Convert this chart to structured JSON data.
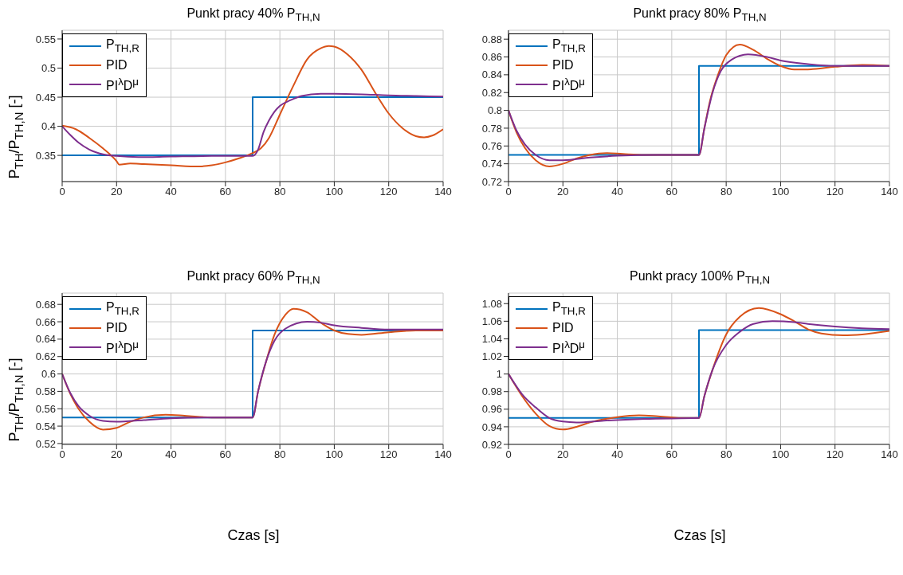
{
  "chart_data": [
    {
      "type": "line",
      "title": "Punkt pracy 40% P$_{TH,N}$",
      "ylabel": "P$_{TH}$/P$_{TH,N}$ [-]",
      "xlim": [
        0,
        140
      ],
      "xticks": [
        0,
        20,
        40,
        60,
        80,
        100,
        120,
        140
      ],
      "ylim": [
        0.305,
        0.565
      ],
      "yticks": [
        0.35,
        0.4,
        0.45,
        0.5,
        0.55
      ],
      "grid": true,
      "legend": "top left",
      "marker": "none",
      "line_style": "solid",
      "series": [
        {
          "name": "P$_{TH,R}$",
          "color": "#0072bd",
          "x": [
            0,
            70,
            70,
            140
          ],
          "values": [
            0.35,
            0.35,
            0.45,
            0.45
          ]
        },
        {
          "name": "PID",
          "color": "#d95319",
          "x": [
            0,
            5,
            10,
            15,
            20,
            21,
            25,
            30,
            40,
            50,
            55,
            60,
            65,
            70,
            73,
            76,
            80,
            85,
            90,
            95,
            98,
            100,
            105,
            110,
            115,
            120,
            125,
            130,
            133,
            136,
            140
          ],
          "values": [
            0.401,
            0.395,
            0.38,
            0.362,
            0.34,
            0.334,
            0.336,
            0.335,
            0.333,
            0.331,
            0.333,
            0.338,
            0.345,
            0.354,
            0.362,
            0.38,
            0.42,
            0.47,
            0.515,
            0.534,
            0.538,
            0.537,
            0.523,
            0.497,
            0.458,
            0.422,
            0.397,
            0.383,
            0.381,
            0.384,
            0.395
          ]
        },
        {
          "name": "PI$^{λ}$D$^{μ}$",
          "color": "#7e2f8e",
          "x": [
            0,
            3,
            6,
            10,
            15,
            20,
            28,
            40,
            55,
            70,
            72,
            74,
            76,
            78,
            80,
            84,
            88,
            95,
            100,
            110,
            120,
            130,
            140
          ],
          "values": [
            0.4,
            0.385,
            0.372,
            0.36,
            0.352,
            0.349,
            0.347,
            0.348,
            0.349,
            0.349,
            0.36,
            0.39,
            0.41,
            0.425,
            0.435,
            0.445,
            0.452,
            0.456,
            0.456,
            0.455,
            0.453,
            0.452,
            0.451
          ]
        }
      ]
    },
    {
      "type": "line",
      "title": "Punkt pracy 80% P$_{TH,N}$",
      "xlim": [
        0,
        140
      ],
      "xticks": [
        0,
        20,
        40,
        60,
        80,
        100,
        120,
        140
      ],
      "ylim": [
        0.72,
        0.89
      ],
      "yticks": [
        0.72,
        0.74,
        0.76,
        0.78,
        0.8,
        0.82,
        0.84,
        0.86,
        0.88
      ],
      "grid": true,
      "legend": "top left",
      "marker": "none",
      "line_style": "solid",
      "series": [
        {
          "name": "P$_{TH,R}$",
          "color": "#0072bd",
          "x": [
            0,
            70,
            70,
            140
          ],
          "values": [
            0.75,
            0.75,
            0.85,
            0.85
          ]
        },
        {
          "name": "PID",
          "color": "#d95319",
          "x": [
            0,
            3,
            6,
            10,
            15,
            20,
            25,
            30,
            36,
            42,
            50,
            60,
            70,
            72,
            74,
            77,
            80,
            85,
            90,
            95,
            100,
            105,
            110,
            120,
            130,
            140
          ],
          "values": [
            0.8,
            0.775,
            0.758,
            0.744,
            0.737,
            0.74,
            0.746,
            0.75,
            0.752,
            0.751,
            0.75,
            0.75,
            0.75,
            0.78,
            0.81,
            0.84,
            0.862,
            0.874,
            0.868,
            0.858,
            0.85,
            0.846,
            0.846,
            0.849,
            0.851,
            0.85
          ]
        },
        {
          "name": "PI$^{λ}$D$^{μ}$",
          "color": "#7e2f8e",
          "x": [
            0,
            3,
            6,
            10,
            15,
            20,
            30,
            40,
            55,
            70,
            72,
            75,
            78,
            82,
            88,
            95,
            100,
            110,
            120,
            140
          ],
          "values": [
            0.8,
            0.777,
            0.762,
            0.75,
            0.744,
            0.744,
            0.747,
            0.749,
            0.75,
            0.75,
            0.78,
            0.82,
            0.844,
            0.857,
            0.863,
            0.86,
            0.856,
            0.852,
            0.85,
            0.85
          ]
        }
      ]
    },
    {
      "type": "line",
      "title": "Punkt pracy 60% P$_{TH,N}$",
      "xlabel": "Czas [s]",
      "ylabel": "P$_{TH}$/P$_{TH,N}$ [-]",
      "xlim": [
        0,
        140
      ],
      "xticks": [
        0,
        20,
        40,
        60,
        80,
        100,
        120,
        140
      ],
      "ylim": [
        0.519,
        0.693
      ],
      "yticks": [
        0.52,
        0.54,
        0.56,
        0.58,
        0.6,
        0.62,
        0.64,
        0.66,
        0.68
      ],
      "grid": true,
      "legend": "top left",
      "marker": "none",
      "line_style": "solid",
      "series": [
        {
          "name": "P$_{TH,R}$",
          "color": "#0072bd",
          "x": [
            0,
            70,
            70,
            140
          ],
          "values": [
            0.55,
            0.55,
            0.65,
            0.65
          ]
        },
        {
          "name": "PID",
          "color": "#d95319",
          "x": [
            0,
            3,
            6,
            10,
            15,
            20,
            25,
            30,
            38,
            45,
            55,
            70,
            72,
            75,
            78,
            82,
            85,
            90,
            95,
            100,
            105,
            110,
            120,
            130,
            140
          ],
          "values": [
            0.6,
            0.577,
            0.56,
            0.545,
            0.536,
            0.538,
            0.545,
            0.55,
            0.553,
            0.552,
            0.55,
            0.55,
            0.58,
            0.615,
            0.645,
            0.668,
            0.675,
            0.671,
            0.659,
            0.65,
            0.646,
            0.645,
            0.648,
            0.65,
            0.65
          ]
        },
        {
          "name": "PI$^{λ}$D$^{μ}$",
          "color": "#7e2f8e",
          "x": [
            0,
            3,
            6,
            10,
            15,
            20,
            30,
            40,
            55,
            70,
            72,
            75,
            78,
            82,
            90,
            95,
            100,
            110,
            120,
            140
          ],
          "values": [
            0.6,
            0.578,
            0.563,
            0.552,
            0.546,
            0.545,
            0.547,
            0.549,
            0.55,
            0.55,
            0.58,
            0.615,
            0.638,
            0.652,
            0.66,
            0.659,
            0.656,
            0.653,
            0.651,
            0.651
          ]
        }
      ]
    },
    {
      "type": "line",
      "title": "Punkt pracy 100% P$_{TH,N}$",
      "xlabel": "Czas [s]",
      "xlim": [
        0,
        140
      ],
      "xticks": [
        0,
        20,
        40,
        60,
        80,
        100,
        120,
        140
      ],
      "ylim": [
        0.92,
        1.092
      ],
      "yticks": [
        0.92,
        0.94,
        0.96,
        0.98,
        1,
        1.02,
        1.04,
        1.06,
        1.08
      ],
      "grid": true,
      "legend": "top left",
      "marker": "none",
      "line_style": "solid",
      "series": [
        {
          "name": "P$_{TH,R}$",
          "color": "#0072bd",
          "x": [
            0,
            70,
            70,
            140
          ],
          "values": [
            0.95,
            0.95,
            1.05,
            1.05
          ]
        },
        {
          "name": "PID",
          "color": "#d95319",
          "x": [
            0,
            5,
            10,
            15,
            20,
            25,
            30,
            40,
            48,
            55,
            65,
            70,
            72,
            75,
            80,
            85,
            92,
            100,
            105,
            110,
            115,
            123,
            130,
            140
          ],
          "values": [
            1.0,
            0.975,
            0.955,
            0.941,
            0.937,
            0.94,
            0.945,
            0.951,
            0.953,
            0.952,
            0.95,
            0.95,
            0.975,
            1.005,
            1.045,
            1.065,
            1.075,
            1.068,
            1.06,
            1.051,
            1.046,
            1.044,
            1.045,
            1.049
          ]
        },
        {
          "name": "PI$^{λ}$D$^{μ}$",
          "color": "#7e2f8e",
          "x": [
            0,
            5,
            10,
            15,
            20,
            25,
            35,
            50,
            70,
            72,
            75,
            80,
            85,
            90,
            97,
            105,
            110,
            120,
            130,
            140
          ],
          "values": [
            1.0,
            0.977,
            0.962,
            0.95,
            0.946,
            0.945,
            0.947,
            0.949,
            0.95,
            0.975,
            1.005,
            1.033,
            1.048,
            1.057,
            1.06,
            1.059,
            1.057,
            1.054,
            1.052,
            1.051
          ]
        }
      ]
    }
  ]
}
